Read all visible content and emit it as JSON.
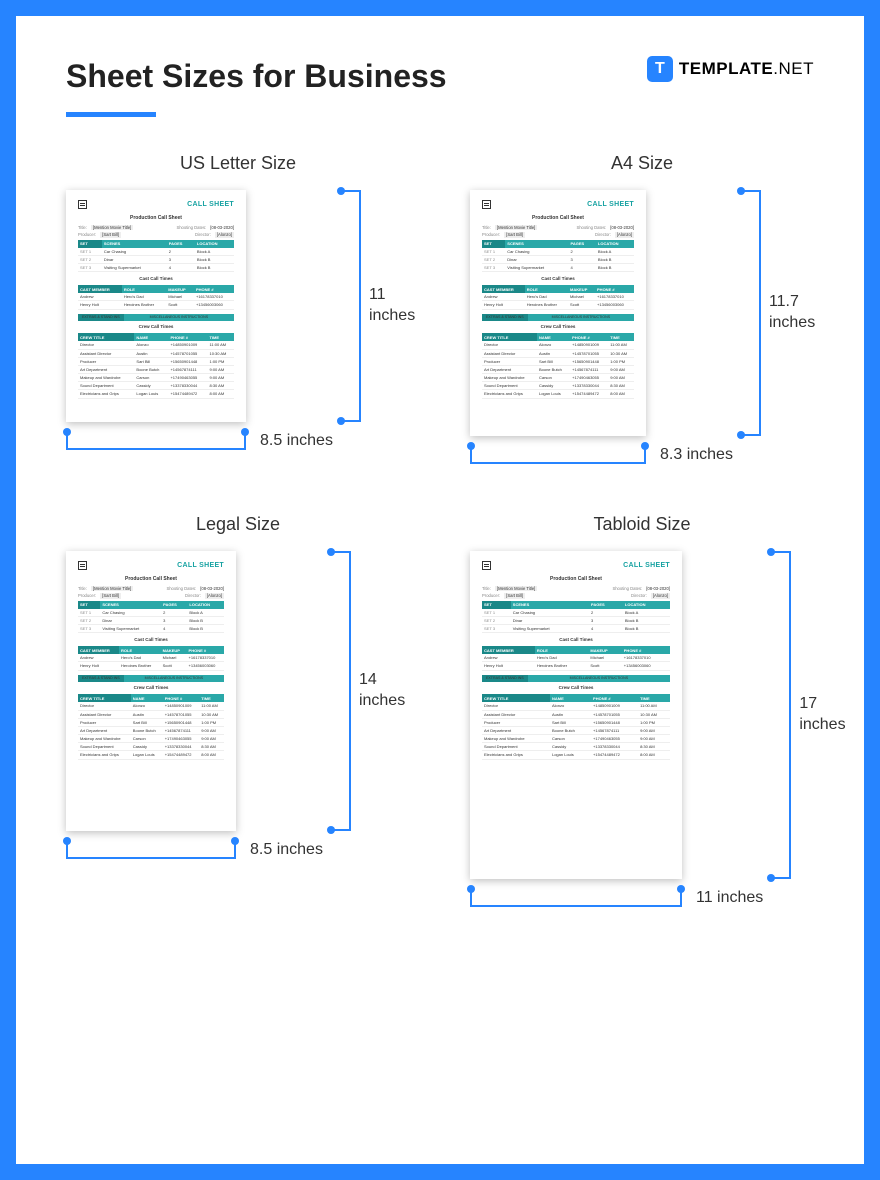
{
  "brand": {
    "bold": "TEMPLATE",
    "thin": ".NET",
    "icon_letter": "T"
  },
  "title": "Sheet Sizes for Business",
  "colors": {
    "frame_bg": "#2684ff",
    "accent": "#2684ff",
    "teal": "#2aa8a8",
    "teal_dark": "#1a8888"
  },
  "doc": {
    "call_sheet_label": "CALL SHEET",
    "title": "Production Call Sheet",
    "meta": {
      "title_label": "Title:",
      "title_value": "[Mention Movie Title]",
      "producer_label": "Producer:",
      "producer_value": "[Sart Bill]",
      "date_label": "Shooting Dates:",
      "date_value": "[08-03-2020]",
      "director_label": "Director:",
      "director_value": "[Alonzo]"
    },
    "sets_headers": [
      "SET",
      "SCENES",
      "PAGES",
      "LOCATION"
    ],
    "sets_rows": [
      [
        "SET 1",
        "Car Chasing",
        "2",
        "Block A"
      ],
      [
        "SET 2",
        "Dinar",
        "3",
        "Block B"
      ],
      [
        "SET 3",
        "Visiting Supermarket",
        "4",
        "Block B"
      ]
    ],
    "cast_title": "Cast Call Times",
    "cast_headers": [
      "CAST MEMBER",
      "ROLE",
      "MAKEUP",
      "PHONE #"
    ],
    "cast_rows": [
      [
        "Andrew",
        "Hero's Dad",
        "Michael",
        "+16178337010"
      ],
      [
        "Henry Holt",
        "Heroines Brother",
        "Scott",
        "+13456003060"
      ]
    ],
    "misc_left": "EXTRAS & STAND INS",
    "misc_right": "MISCELLANEOUS INSTRUCTIONS",
    "crew_title": "Crew Call Times",
    "crew_headers": [
      "CREW TITLE",
      "NAME",
      "PHONE #",
      "TIME"
    ],
    "crew_rows": [
      [
        "Director",
        "Alonzo",
        "+14850901009",
        "11:00 AM"
      ],
      [
        "Assistant Director",
        "Austin",
        "+14578701055",
        "10:30 AM"
      ],
      [
        "Producer",
        "Sart Bill",
        "+15650901448",
        "1:00 PM"
      ],
      [
        "Art Department",
        "Boone Butch",
        "+14567874111",
        "9:00 AM"
      ],
      [
        "Makeup and Wardrobe",
        "Carson",
        "+17490463055",
        "9:00 AM"
      ],
      [
        "Sound Department",
        "Cassidy",
        "+13378330044",
        "8:30 AM"
      ],
      [
        "Electricians and Grips",
        "Logan Louis",
        "+15474489472",
        "8:00 AM"
      ]
    ]
  },
  "panels": [
    {
      "name": "US Letter Size",
      "doc_w": 180,
      "doc_h": 232,
      "width_label": "8.5 inches",
      "height_label": "11\ninches"
    },
    {
      "name": "A4 Size",
      "doc_w": 176,
      "doc_h": 246,
      "width_label": "8.3 inches",
      "height_label": "11.7\ninches"
    },
    {
      "name": "Legal Size",
      "doc_w": 170,
      "doc_h": 280,
      "width_label": "8.5 inches",
      "height_label": "14\ninches"
    },
    {
      "name": "Tabloid Size",
      "doc_w": 212,
      "doc_h": 328,
      "width_label": "11 inches",
      "height_label": "17\ninches"
    }
  ]
}
